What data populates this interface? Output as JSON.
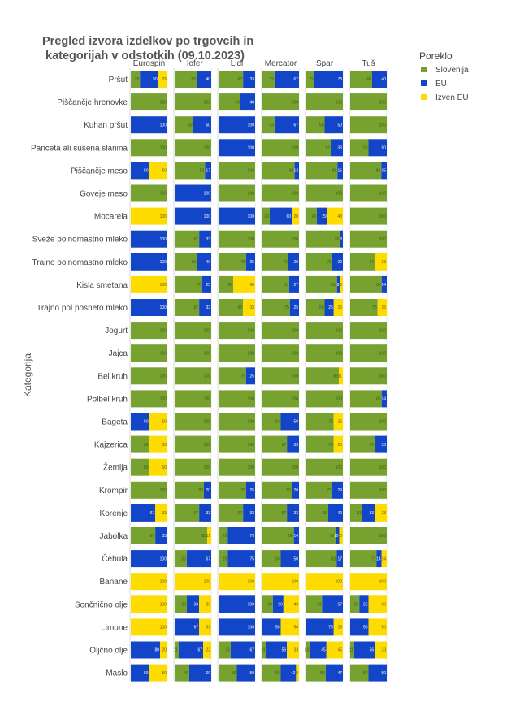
{
  "title_lines": [
    "Pregled izvora izdelkov po trgovcih in",
    "kategorijah v odstotkih (09.10.2023)"
  ],
  "y_axis_title": "Kategorija",
  "legend": {
    "title": "Poreklo",
    "items": [
      {
        "name": "Slovenija",
        "color": "#77A22F"
      },
      {
        "name": "EU",
        "color": "#1245C8"
      },
      {
        "name": "Izven EU",
        "color": "#FFDC00"
      }
    ]
  },
  "chart_data": {
    "type": "bar",
    "orientation": "horizontal",
    "stacked": true,
    "title": "Pregled izvora izdelkov po trgovcih in kategorijah v odstotkih (09.10.2023)",
    "ylabel": "Kategorija",
    "xlim": [
      0,
      100
    ],
    "legend_placement": "top-right",
    "series_names": [
      "Slovenija",
      "EU",
      "Izven EU"
    ],
    "colors": [
      "#77A22F",
      "#1245C8",
      "#FFDC00"
    ],
    "stores": [
      "Eurospin",
      "Hofer",
      "Lidl",
      "Mercator",
      "Spar",
      "Tuš"
    ],
    "categories": [
      "Pršut",
      "Piščančje hrenovke",
      "Kuhan pršut",
      "Panceta ali sušena slanina",
      "Piščančje meso",
      "Goveje meso",
      "Mocarela",
      "Sveže polnomastno mleko",
      "Trajno polnomastno mleko",
      "Kisla smetana",
      "Trajno pol posneto mleko",
      "Jogurt",
      "Jajca",
      "Bel kruh",
      "Polbel kruh",
      "Bageta",
      "Kajzerica",
      "Žemlja",
      "Krompir",
      "Korenje",
      "Jabolka",
      "Čebula",
      "Banane",
      "Sončnično olje",
      "Limone",
      "Oljčno olje",
      "Maslo"
    ],
    "values": {
      "Eurospin": [
        [
          25,
          50,
          25
        ],
        [
          100,
          0,
          0
        ],
        [
          0,
          100,
          0
        ],
        [
          100,
          0,
          0
        ],
        [
          0,
          50,
          50
        ],
        [
          100,
          0,
          0
        ],
        [
          0,
          0,
          100
        ],
        [
          0,
          100,
          0
        ],
        [
          0,
          100,
          0
        ],
        [
          0,
          0,
          100
        ],
        [
          0,
          100,
          0
        ],
        [
          100,
          0,
          0
        ],
        [
          100,
          0,
          0
        ],
        [
          100,
          0,
          0
        ],
        [
          100,
          0,
          0
        ],
        [
          0,
          50,
          50
        ],
        [
          50,
          0,
          50
        ],
        [
          50,
          0,
          50
        ],
        [
          100,
          0,
          0
        ],
        [
          0,
          67,
          33
        ],
        [
          67,
          33,
          0
        ],
        [
          0,
          100,
          0
        ],
        [
          0,
          0,
          100
        ],
        [
          0,
          0,
          100
        ],
        [
          0,
          0,
          100
        ],
        [
          0,
          80,
          20
        ],
        [
          0,
          50,
          50
        ]
      ],
      "Hofer": [
        [
          60,
          40,
          0
        ],
        [
          100,
          0,
          0
        ],
        [
          50,
          50,
          0
        ],
        [
          100,
          0,
          0
        ],
        [
          83,
          17,
          0
        ],
        [
          0,
          100,
          0
        ],
        [
          0,
          100,
          0
        ],
        [
          67,
          33,
          0
        ],
        [
          60,
          40,
          0
        ],
        [
          75,
          25,
          0
        ],
        [
          67,
          33,
          0
        ],
        [
          100,
          0,
          0
        ],
        [
          100,
          0,
          0
        ],
        [
          100,
          0,
          0
        ],
        [
          100,
          0,
          0
        ],
        [
          100,
          0,
          0
        ],
        [
          100,
          0,
          0
        ],
        [
          100,
          0,
          0
        ],
        [
          80,
          20,
          0
        ],
        [
          67,
          33,
          0
        ],
        [
          89,
          0,
          11
        ],
        [
          33,
          67,
          0
        ],
        [
          0,
          0,
          100
        ],
        [
          33,
          33,
          33
        ],
        [
          0,
          67,
          33
        ],
        [
          11,
          67,
          22
        ],
        [
          40,
          60,
          0
        ]
      ],
      "Lidl": [
        [
          67,
          33,
          0
        ],
        [
          60,
          40,
          0
        ],
        [
          0,
          100,
          0
        ],
        [
          0,
          100,
          0
        ],
        [
          100,
          0,
          0
        ],
        [
          100,
          0,
          0
        ],
        [
          0,
          100,
          0
        ],
        [
          100,
          0,
          0
        ],
        [
          75,
          25,
          0
        ],
        [
          40,
          0,
          60
        ],
        [
          67,
          0,
          33
        ],
        [
          100,
          0,
          0
        ],
        [
          100,
          0,
          0
        ],
        [
          75,
          25,
          0
        ],
        [
          100,
          0,
          0
        ],
        [
          100,
          0,
          0
        ],
        [
          100,
          0,
          0
        ],
        [
          100,
          0,
          0
        ],
        [
          75,
          25,
          0
        ],
        [
          67,
          33,
          0
        ],
        [
          25,
          75,
          0
        ],
        [
          25,
          75,
          0
        ],
        [
          0,
          0,
          100
        ],
        [
          0,
          100,
          0
        ],
        [
          0,
          100,
          0
        ],
        [
          33,
          67,
          0
        ],
        [
          50,
          50,
          0
        ]
      ],
      "Mercator": [
        [
          33,
          67,
          0
        ],
        [
          100,
          0,
          0
        ],
        [
          33,
          67,
          0
        ],
        [
          100,
          0,
          0
        ],
        [
          88,
          12,
          0
        ],
        [
          100,
          0,
          0
        ],
        [
          20,
          60,
          20
        ],
        [
          100,
          0,
          0
        ],
        [
          71,
          29,
          0
        ],
        [
          73,
          27,
          0
        ],
        [
          75,
          25,
          0
        ],
        [
          100,
          0,
          0
        ],
        [
          100,
          0,
          0
        ],
        [
          100,
          0,
          0
        ],
        [
          100,
          0,
          0
        ],
        [
          50,
          50,
          0
        ],
        [
          67,
          33,
          0
        ],
        [
          100,
          0,
          0
        ],
        [
          80,
          20,
          0
        ],
        [
          67,
          33,
          0
        ],
        [
          86,
          14,
          0
        ],
        [
          50,
          50,
          0
        ],
        [
          0,
          0,
          100
        ],
        [
          29,
          29,
          43
        ],
        [
          0,
          50,
          50
        ],
        [
          11,
          56,
          33
        ],
        [
          50,
          42,
          8
        ]
      ],
      "Spar": [
        [
          22,
          78,
          0
        ],
        [
          100,
          0,
          0
        ],
        [
          50,
          50,
          0
        ],
        [
          67,
          33,
          0
        ],
        [
          85,
          15,
          0
        ],
        [
          100,
          0,
          0
        ],
        [
          29,
          29,
          43
        ],
        [
          92,
          8,
          0
        ],
        [
          71,
          29,
          0
        ],
        [
          83,
          8,
          8
        ],
        [
          50,
          25,
          25
        ],
        [
          100,
          0,
          0
        ],
        [
          100,
          0,
          0
        ],
        [
          89,
          0,
          11
        ],
        [
          100,
          0,
          0
        ],
        [
          75,
          0,
          25
        ],
        [
          75,
          0,
          25
        ],
        [
          100,
          0,
          0
        ],
        [
          71,
          29,
          0
        ],
        [
          60,
          40,
          0
        ],
        [
          80,
          10,
          10
        ],
        [
          83,
          17,
          0
        ],
        [
          0,
          0,
          100
        ],
        [
          43,
          57,
          0
        ],
        [
          0,
          75,
          25
        ],
        [
          10,
          45,
          45
        ],
        [
          53,
          47,
          0
        ]
      ],
      "Tuš": [
        [
          60,
          40,
          0
        ],
        [
          100,
          0,
          0
        ],
        [
          100,
          0,
          0
        ],
        [
          50,
          50,
          0
        ],
        [
          85,
          15,
          0
        ],
        [
          100,
          0,
          0
        ],
        [
          100,
          0,
          0
        ],
        [
          100,
          0,
          0
        ],
        [
          67,
          0,
          33
        ],
        [
          86,
          14,
          0
        ],
        [
          75,
          0,
          25
        ],
        [
          100,
          0,
          0
        ],
        [
          100,
          0,
          0
        ],
        [
          100,
          0,
          0
        ],
        [
          86,
          14,
          0
        ],
        [
          100,
          0,
          0
        ],
        [
          67,
          33,
          0
        ],
        [
          100,
          0,
          0
        ],
        [
          100,
          0,
          0
        ],
        [
          33,
          33,
          33
        ],
        [
          100,
          0,
          0
        ],
        [
          71,
          14,
          14
        ],
        [
          0,
          0,
          100
        ],
        [
          25,
          25,
          50
        ],
        [
          0,
          50,
          50
        ],
        [
          11,
          56,
          33
        ],
        [
          50,
          50,
          0
        ]
      ]
    }
  }
}
